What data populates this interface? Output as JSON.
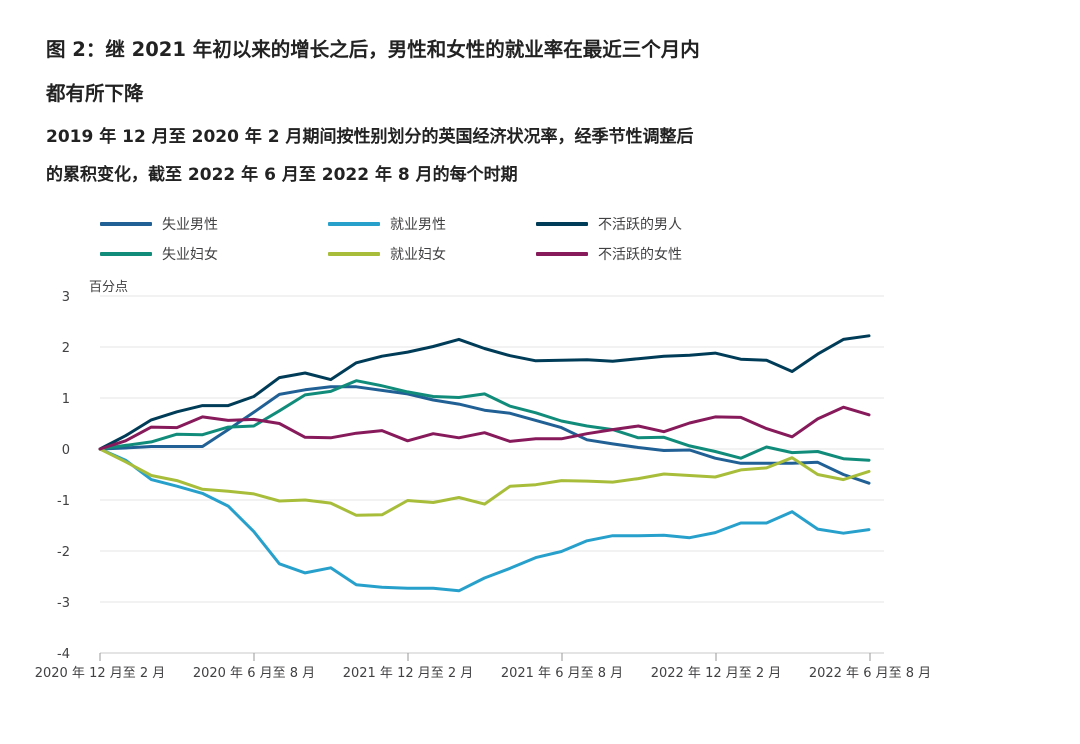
{
  "header": {
    "title_line1": "图 2：继 2021 年初以来的增长之后，男性和女性的就业率在最近三个月内",
    "title_line2": "都有所下降",
    "subtitle_line1": "2019 年 12 月至 2020 年 2 月期间按性别划分的英国经济状况率，经季节性调整后",
    "subtitle_line2": "的累积变化，截至 2022 年 6 月至 2022 年 8 月的每个时期"
  },
  "chart_data": {
    "type": "line",
    "ylabel": "百分点",
    "ylim": [
      -4,
      3
    ],
    "yticks": [
      3,
      2,
      1,
      0,
      -1,
      -2,
      -3,
      -4
    ],
    "grid": true,
    "legend_position": "top",
    "x_labels": [
      "2020 年 12 月至 2 月",
      "2020 年 6 月至 8 月",
      "2021 年 12 月至 2 月",
      "2021 年 6 月至 8 月",
      "2022 年 12 月至 2 月",
      "2022 年 6 月至 8 月"
    ],
    "series": [
      {
        "name": "失业男性",
        "color": "#206095",
        "values": [
          0,
          0.02,
          0.05,
          0.05,
          0.05,
          0.38,
          0.72,
          1.07,
          1.16,
          1.22,
          1.22,
          1.15,
          1.08,
          0.96,
          0.88,
          0.76,
          0.7,
          0.56,
          0.42,
          0.18,
          0.1,
          0.03,
          -0.03,
          -0.02,
          -0.18,
          -0.28,
          -0.28,
          -0.28,
          -0.26,
          -0.5,
          -0.67
        ]
      },
      {
        "name": "就业男性",
        "color": "#27a0cc",
        "values": [
          0,
          -0.22,
          -0.6,
          -0.73,
          -0.87,
          -1.12,
          -1.62,
          -2.25,
          -2.43,
          -2.33,
          -2.66,
          -2.71,
          -2.73,
          -2.73,
          -2.78,
          -2.53,
          -2.34,
          -2.13,
          -2.01,
          -1.8,
          -1.7,
          -1.7,
          -1.69,
          -1.74,
          -1.64,
          -1.45,
          -1.45,
          -1.23,
          -1.57,
          -1.65,
          -1.58
        ]
      },
      {
        "name": "不活跃的男人",
        "color": "#003c57",
        "values": [
          0,
          0.26,
          0.57,
          0.73,
          0.85,
          0.85,
          1.03,
          1.4,
          1.49,
          1.36,
          1.69,
          1.82,
          1.9,
          2.01,
          2.15,
          1.97,
          1.83,
          1.73,
          1.74,
          1.75,
          1.72,
          1.77,
          1.82,
          1.84,
          1.88,
          1.76,
          1.74,
          1.52,
          1.86,
          2.15,
          2.22
        ]
      },
      {
        "name": "失业妇女",
        "color": "#118c7b",
        "values": [
          0,
          0.07,
          0.14,
          0.29,
          0.28,
          0.43,
          0.45,
          0.75,
          1.06,
          1.13,
          1.34,
          1.24,
          1.12,
          1.03,
          1.01,
          1.08,
          0.84,
          0.71,
          0.55,
          0.45,
          0.38,
          0.22,
          0.23,
          0.06,
          -0.05,
          -0.18,
          0.04,
          -0.07,
          -0.05,
          -0.19,
          -0.22
        ]
      },
      {
        "name": "就业妇女",
        "color": "#a8bd3a",
        "values": [
          0,
          -0.25,
          -0.52,
          -0.62,
          -0.79,
          -0.83,
          -0.88,
          -1.02,
          -1.0,
          -1.06,
          -1.3,
          -1.29,
          -1.01,
          -1.05,
          -0.95,
          -1.08,
          -0.73,
          -0.7,
          -0.62,
          -0.63,
          -0.65,
          -0.58,
          -0.49,
          -0.52,
          -0.55,
          -0.41,
          -0.37,
          -0.17,
          -0.5,
          -0.6,
          -0.44
        ]
      },
      {
        "name": "不活跃的女性",
        "color": "#871a5b",
        "values": [
          0,
          0.16,
          0.43,
          0.42,
          0.63,
          0.56,
          0.58,
          0.5,
          0.23,
          0.22,
          0.31,
          0.36,
          0.16,
          0.3,
          0.22,
          0.32,
          0.15,
          0.2,
          0.2,
          0.3,
          0.38,
          0.45,
          0.34,
          0.51,
          0.63,
          0.62,
          0.4,
          0.24,
          0.59,
          0.82,
          0.67
        ]
      }
    ]
  }
}
